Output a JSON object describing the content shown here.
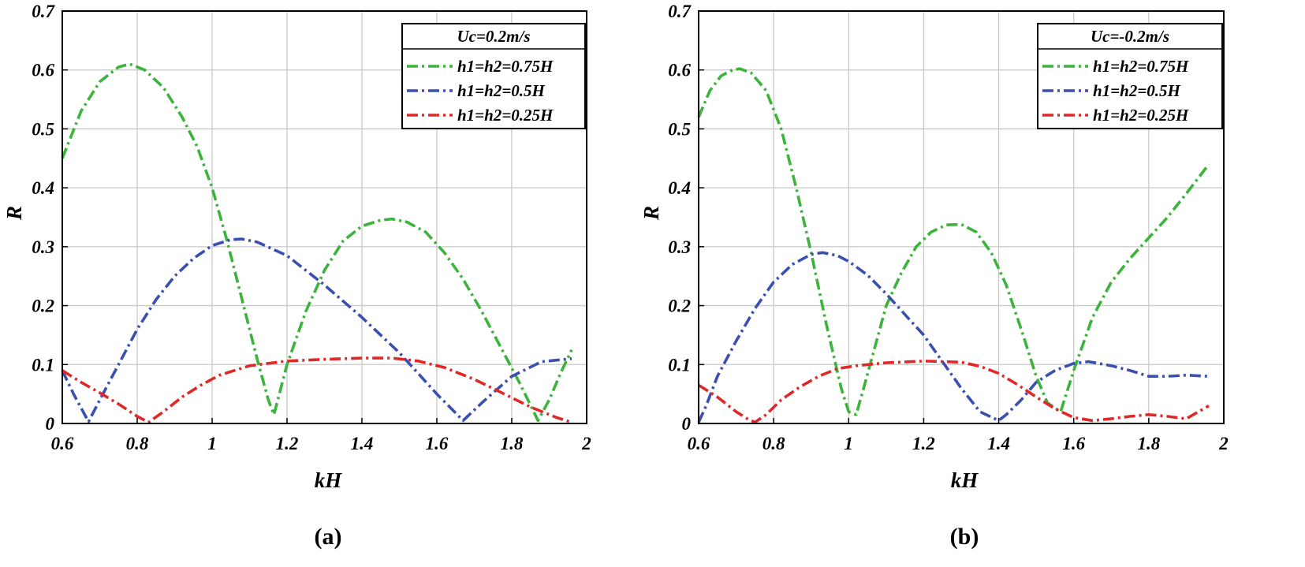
{
  "chart_data": [
    {
      "type": "line",
      "panel_label": "(a)",
      "xlabel": "kH",
      "ylabel": "R",
      "xlim": [
        0.6,
        2.0
      ],
      "ylim": [
        0,
        0.7
      ],
      "xticks": [
        "0.6",
        "0.8",
        "1",
        "1.2",
        "1.4",
        "1.6",
        "1.8",
        "2"
      ],
      "yticks": [
        "0",
        "0.1",
        "0.2",
        "0.3",
        "0.4",
        "0.5",
        "0.6",
        "0.7"
      ],
      "grid": true,
      "legend_position": "top-right",
      "legend_title": "Uc=0.2m/s",
      "series": [
        {
          "name": "h1=h2=0.75H",
          "color": "#3cb43c",
          "x": [
            0.6,
            0.65,
            0.7,
            0.75,
            0.78,
            0.82,
            0.87,
            0.92,
            0.96,
            1.0,
            1.04,
            1.08,
            1.12,
            1.15,
            1.165,
            1.2,
            1.25,
            1.3,
            1.35,
            1.4,
            1.45,
            1.48,
            1.52,
            1.57,
            1.62,
            1.67,
            1.72,
            1.77,
            1.82,
            1.87,
            1.9,
            1.93,
            1.96
          ],
          "y": [
            0.45,
            0.53,
            0.58,
            0.605,
            0.61,
            0.6,
            0.57,
            0.52,
            0.47,
            0.4,
            0.31,
            0.21,
            0.11,
            0.04,
            0.015,
            0.1,
            0.19,
            0.26,
            0.31,
            0.335,
            0.345,
            0.347,
            0.342,
            0.325,
            0.29,
            0.245,
            0.19,
            0.13,
            0.07,
            0.005,
            0.04,
            0.085,
            0.125
          ]
        },
        {
          "name": "h1=h2=0.5H",
          "color": "#3a4fb0",
          "x": [
            0.6,
            0.63,
            0.67,
            0.7,
            0.75,
            0.8,
            0.85,
            0.9,
            0.95,
            1.0,
            1.05,
            1.08,
            1.12,
            1.2,
            1.3,
            1.4,
            1.5,
            1.6,
            1.67,
            1.72,
            1.8,
            1.88,
            1.96
          ],
          "y": [
            0.09,
            0.05,
            0.003,
            0.04,
            0.1,
            0.16,
            0.21,
            0.25,
            0.28,
            0.302,
            0.312,
            0.313,
            0.308,
            0.285,
            0.235,
            0.18,
            0.12,
            0.05,
            0.005,
            0.035,
            0.08,
            0.105,
            0.11
          ]
        },
        {
          "name": "h1=h2=0.25H",
          "color": "#e02828",
          "x": [
            0.6,
            0.65,
            0.7,
            0.75,
            0.8,
            0.83,
            0.87,
            0.92,
            0.97,
            1.02,
            1.1,
            1.2,
            1.3,
            1.4,
            1.48,
            1.55,
            1.62,
            1.7,
            1.78,
            1.85,
            1.92,
            1.96
          ],
          "y": [
            0.09,
            0.07,
            0.052,
            0.033,
            0.012,
            0.002,
            0.02,
            0.045,
            0.065,
            0.082,
            0.098,
            0.106,
            0.109,
            0.111,
            0.111,
            0.106,
            0.095,
            0.075,
            0.05,
            0.028,
            0.01,
            0.002
          ]
        }
      ]
    },
    {
      "type": "line",
      "panel_label": "(b)",
      "xlabel": "kH",
      "ylabel": "R",
      "xlim": [
        0.6,
        2.0
      ],
      "ylim": [
        0,
        0.7
      ],
      "xticks": [
        "0.6",
        "0.8",
        "1",
        "1.2",
        "1.4",
        "1.6",
        "1.8",
        "2"
      ],
      "yticks": [
        "0",
        "0.1",
        "0.2",
        "0.3",
        "0.4",
        "0.5",
        "0.6",
        "0.7"
      ],
      "grid": true,
      "legend_position": "top-right",
      "legend_title": "Uc=-0.2m/s",
      "series": [
        {
          "name": "h1=h2=0.75H",
          "color": "#3cb43c",
          "x": [
            0.6,
            0.63,
            0.66,
            0.69,
            0.71,
            0.74,
            0.78,
            0.82,
            0.86,
            0.9,
            0.94,
            0.98,
            1.0,
            1.02,
            1.04,
            1.07,
            1.1,
            1.14,
            1.18,
            1.22,
            1.26,
            1.3,
            1.34,
            1.38,
            1.42,
            1.46,
            1.5,
            1.53,
            1.565,
            1.6,
            1.65,
            1.7,
            1.75,
            1.8,
            1.85,
            1.9,
            1.96
          ],
          "y": [
            0.52,
            0.565,
            0.59,
            0.6,
            0.602,
            0.595,
            0.565,
            0.5,
            0.4,
            0.29,
            0.17,
            0.06,
            0.02,
            0.015,
            0.06,
            0.13,
            0.2,
            0.255,
            0.3,
            0.325,
            0.337,
            0.338,
            0.325,
            0.29,
            0.235,
            0.16,
            0.08,
            0.035,
            0.02,
            0.09,
            0.18,
            0.24,
            0.28,
            0.315,
            0.35,
            0.39,
            0.44
          ]
        },
        {
          "name": "h1=h2=0.5H",
          "color": "#3a4fb0",
          "x": [
            0.6,
            0.62,
            0.65,
            0.7,
            0.75,
            0.8,
            0.85,
            0.9,
            0.93,
            0.97,
            1.0,
            1.05,
            1.1,
            1.15,
            1.2,
            1.25,
            1.3,
            1.35,
            1.4,
            1.42,
            1.46,
            1.5,
            1.55,
            1.6,
            1.64,
            1.7,
            1.75,
            1.8,
            1.85,
            1.9,
            1.96
          ],
          "y": [
            0.002,
            0.03,
            0.08,
            0.14,
            0.195,
            0.24,
            0.27,
            0.287,
            0.29,
            0.285,
            0.275,
            0.252,
            0.22,
            0.185,
            0.15,
            0.105,
            0.06,
            0.02,
            0.005,
            0.015,
            0.04,
            0.07,
            0.09,
            0.102,
            0.105,
            0.098,
            0.09,
            0.08,
            0.08,
            0.082,
            0.08
          ]
        },
        {
          "name": "h1=h2=0.25H",
          "color": "#e02828",
          "x": [
            0.6,
            0.65,
            0.7,
            0.73,
            0.75,
            0.78,
            0.82,
            0.87,
            0.92,
            0.97,
            1.02,
            1.1,
            1.2,
            1.3,
            1.35,
            1.4,
            1.45,
            1.5,
            1.55,
            1.6,
            1.65,
            1.7,
            1.75,
            1.8,
            1.85,
            1.9,
            1.96
          ],
          "y": [
            0.065,
            0.045,
            0.02,
            0.008,
            0.002,
            0.015,
            0.04,
            0.062,
            0.08,
            0.093,
            0.098,
            0.103,
            0.106,
            0.104,
            0.097,
            0.085,
            0.066,
            0.045,
            0.025,
            0.01,
            0.005,
            0.008,
            0.012,
            0.015,
            0.012,
            0.008,
            0.03
          ]
        }
      ]
    }
  ]
}
